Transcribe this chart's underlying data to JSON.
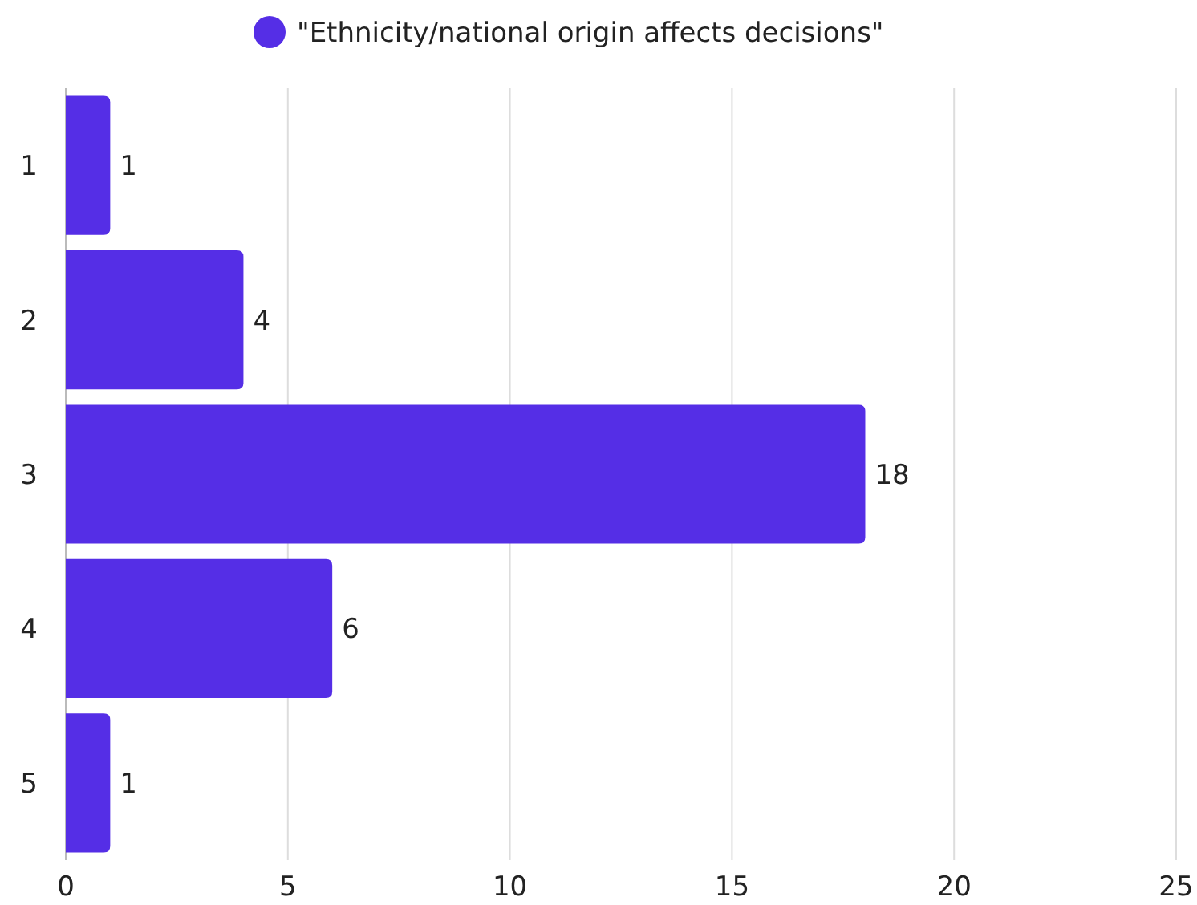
{
  "chart_data": {
    "type": "bar",
    "orientation": "horizontal",
    "categories": [
      "1",
      "2",
      "3",
      "4",
      "5"
    ],
    "series": [
      {
        "name": "\"Ethnicity/national origin affects decisions\"",
        "color": "#552ee6",
        "values": [
          1,
          4,
          18,
          6,
          1
        ]
      }
    ],
    "xlim": [
      0,
      25
    ],
    "xticks": [
      0,
      5,
      10,
      15,
      20,
      25
    ],
    "grid": "x",
    "legend": "top",
    "data_labels": true
  }
}
